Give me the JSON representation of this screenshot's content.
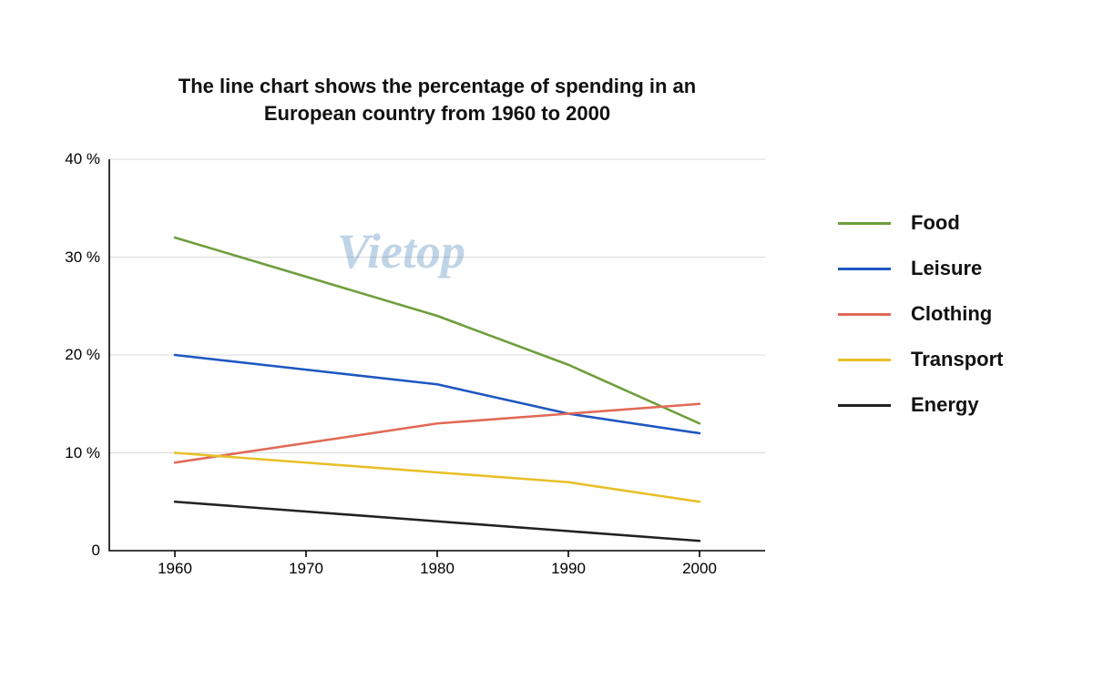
{
  "chart": {
    "type": "line",
    "title": "The line chart shows the percentage of spending in an European country from 1960 to 2000",
    "title_fontsize": 22,
    "title_fontweight": 700,
    "background_color": "#ffffff",
    "grid_color": "#d9d9d9",
    "axis_color": "#000000",
    "axis_width": 1.6,
    "grid_width": 1,
    "label_fontsize": 17,
    "legend_fontsize": 22,
    "legend_fontweight": 700,
    "x": {
      "values": [
        1960,
        1970,
        1980,
        1990,
        2000
      ],
      "labels": [
        "1960",
        "1970",
        "1980",
        "1990",
        "2000"
      ],
      "range": [
        1955,
        2005
      ]
    },
    "y": {
      "ticks": [
        0,
        10,
        20,
        30,
        40
      ],
      "labels": [
        "0",
        "10 %",
        "20 %",
        "30 %",
        "40 %"
      ],
      "range": [
        0,
        40
      ]
    },
    "gridlines_y": [
      10,
      20,
      30,
      40
    ],
    "series": [
      {
        "name": "Food",
        "color": "#6e9e3c",
        "width": 2.6,
        "data": [
          32,
          28,
          24,
          19,
          13
        ]
      },
      {
        "name": "Leisure",
        "color": "#1f57c1",
        "width": 2.6,
        "data": [
          20,
          18.5,
          17,
          14,
          12
        ]
      },
      {
        "name": "Clothing",
        "color": "#e06a56",
        "width": 2.6,
        "data": [
          9,
          11,
          13,
          14,
          15
        ]
      },
      {
        "name": "Transport",
        "color": "#e8bf28",
        "width": 2.6,
        "data": [
          10,
          9,
          8,
          7,
          5
        ]
      },
      {
        "name": "Energy",
        "color": "#222222",
        "width": 2.6,
        "data": [
          5,
          4,
          3,
          2,
          1
        ]
      }
    ],
    "legend_order": [
      "Food",
      "Leisure",
      "Clothing",
      "Transport",
      "Energy"
    ],
    "watermark": {
      "text": "Vietop",
      "color": "#4a86b8",
      "opacity": 0.35,
      "fontsize": 54
    }
  }
}
